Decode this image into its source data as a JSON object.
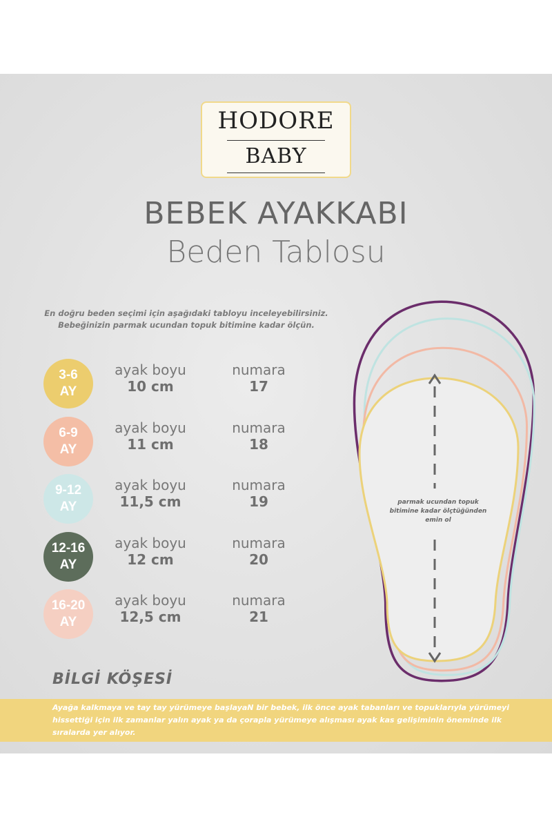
{
  "logo": {
    "line1": "HODORE",
    "line2": "BABY"
  },
  "title": {
    "line1": "BEBEK AYAKKABI",
    "line2": "Beden Tablosu"
  },
  "intro": {
    "line1": "En doğru beden seçimi için aşağıdaki tabloyu inceleyebilirsiniz.",
    "line2": "Bebeğinizin parmak ucundan topuk bitimine kadar ölçün."
  },
  "sizes": [
    {
      "age_range": "3-6",
      "age_unit": "AY",
      "length_label": "ayak boyu",
      "length": "10 cm",
      "number_label": "numara",
      "number": "17",
      "color": "#eccd6e"
    },
    {
      "age_range": "6-9",
      "age_unit": "AY",
      "length_label": "ayak boyu",
      "length": "11 cm",
      "number_label": "numara",
      "number": "18",
      "color": "#f4bea6"
    },
    {
      "age_range": "9-12",
      "age_unit": "AY",
      "length_label": "ayak boyu",
      "length": "11,5 cm",
      "number_label": "numara",
      "number": "19",
      "color": "#cde7e7"
    },
    {
      "age_range": "12-16",
      "age_unit": "AY",
      "length_label": "ayak boyu",
      "length": "12 cm",
      "number_label": "numara",
      "number": "20",
      "color": "#5d6d5b"
    },
    {
      "age_range": "16-20",
      "age_unit": "AY",
      "length_label": "ayak boyu",
      "length": "12,5 cm",
      "number_label": "numara",
      "number": "21",
      "color": "#f5cfc2"
    }
  ],
  "foot_note": "parmak ucundan topuk bitimine kadar ölçtüğünden emin ol",
  "outline_colors": [
    "#6b2d6b",
    "#bfe3e1",
    "#f2b9a5",
    "#ecd27a"
  ],
  "info": {
    "heading": "BİLGİ KÖŞESİ",
    "text": "Ayağa kalkmaya ve tay tay yürümeye başlayaN bir bebek, ilk önce ayak tabanları ve topuklarıyla yürümeyi hissettiği için ilk zamanlar yalın ayak ya da çorapla yürümeye alışması ayak kas gelişiminin öneminde ilk sıralarda yer alıyor."
  }
}
